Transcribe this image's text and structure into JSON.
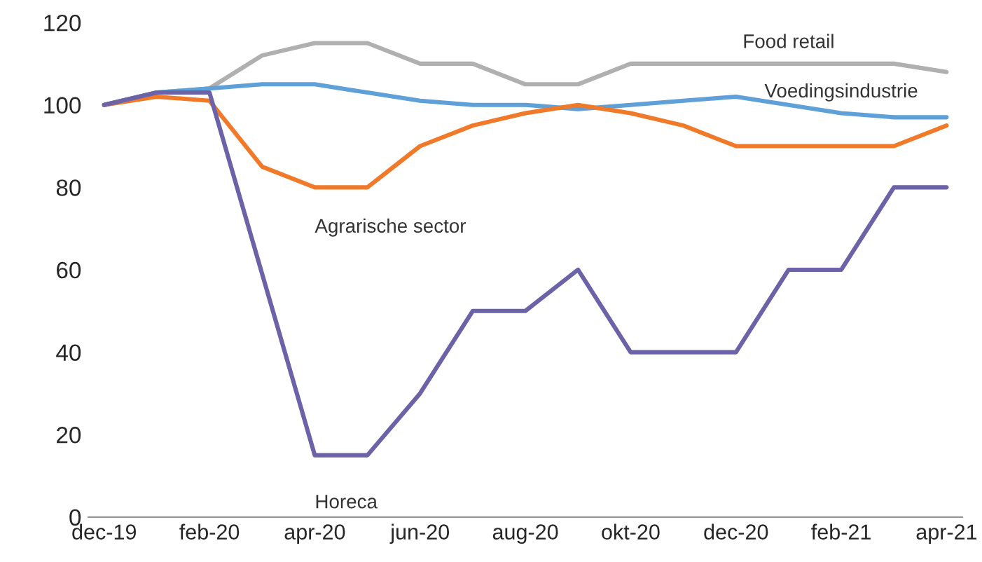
{
  "chart_data": {
    "type": "line",
    "categories": [
      "dec-19",
      null,
      "feb-20",
      null,
      "apr-20",
      null,
      "jun-20",
      null,
      "aug-20",
      null,
      "okt-20",
      null,
      "dec-20",
      null,
      "feb-21",
      null,
      "apr-21"
    ],
    "series": [
      {
        "name": "Food retail",
        "color": "#b0b0b0",
        "values": [
          100,
          103,
          104,
          112,
          115,
          115,
          110,
          110,
          105,
          105,
          110,
          110,
          110,
          110,
          110,
          110,
          108
        ]
      },
      {
        "name": "Voedingsindustrie",
        "color": "#5fa0d8",
        "values": [
          100,
          103,
          104,
          105,
          105,
          103,
          101,
          100,
          100,
          99,
          100,
          101,
          102,
          100,
          98,
          97,
          97
        ]
      },
      {
        "name": "Agrarische sector",
        "color": "#f07a2a",
        "values": [
          100,
          102,
          101,
          85,
          80,
          80,
          90,
          95,
          98,
          100,
          98,
          95,
          90,
          90,
          90,
          90,
          95
        ]
      },
      {
        "name": "Horeca",
        "color": "#6b62a8",
        "values": [
          100,
          103,
          103,
          59,
          15,
          15,
          30,
          50,
          50,
          60,
          40,
          40,
          40,
          60,
          60,
          80,
          80
        ]
      }
    ],
    "ylim": [
      0,
      120
    ],
    "yticks": [
      0,
      20,
      40,
      60,
      80,
      100,
      120
    ],
    "grid": false,
    "legend": false
  }
}
